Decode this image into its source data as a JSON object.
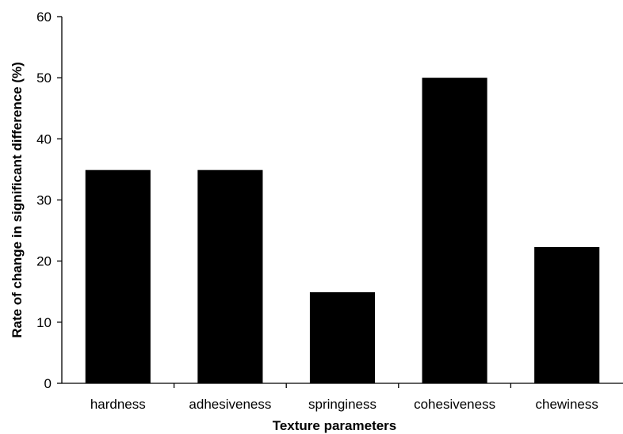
{
  "chart_data": {
    "type": "bar",
    "title": "",
    "xlabel": "Texture parameters",
    "ylabel": "Rate of change in significant difference (%)",
    "categories": [
      "hardness",
      "adhesiveness",
      "springiness",
      "cohesiveness",
      "chewiness"
    ],
    "values": [
      34.9,
      34.9,
      14.9,
      50.0,
      22.3
    ],
    "ylim": [
      0,
      60
    ],
    "yticks": [
      0,
      10,
      20,
      30,
      40,
      50,
      60
    ],
    "grid": false,
    "legend": "none",
    "bar_color": "#000000"
  }
}
